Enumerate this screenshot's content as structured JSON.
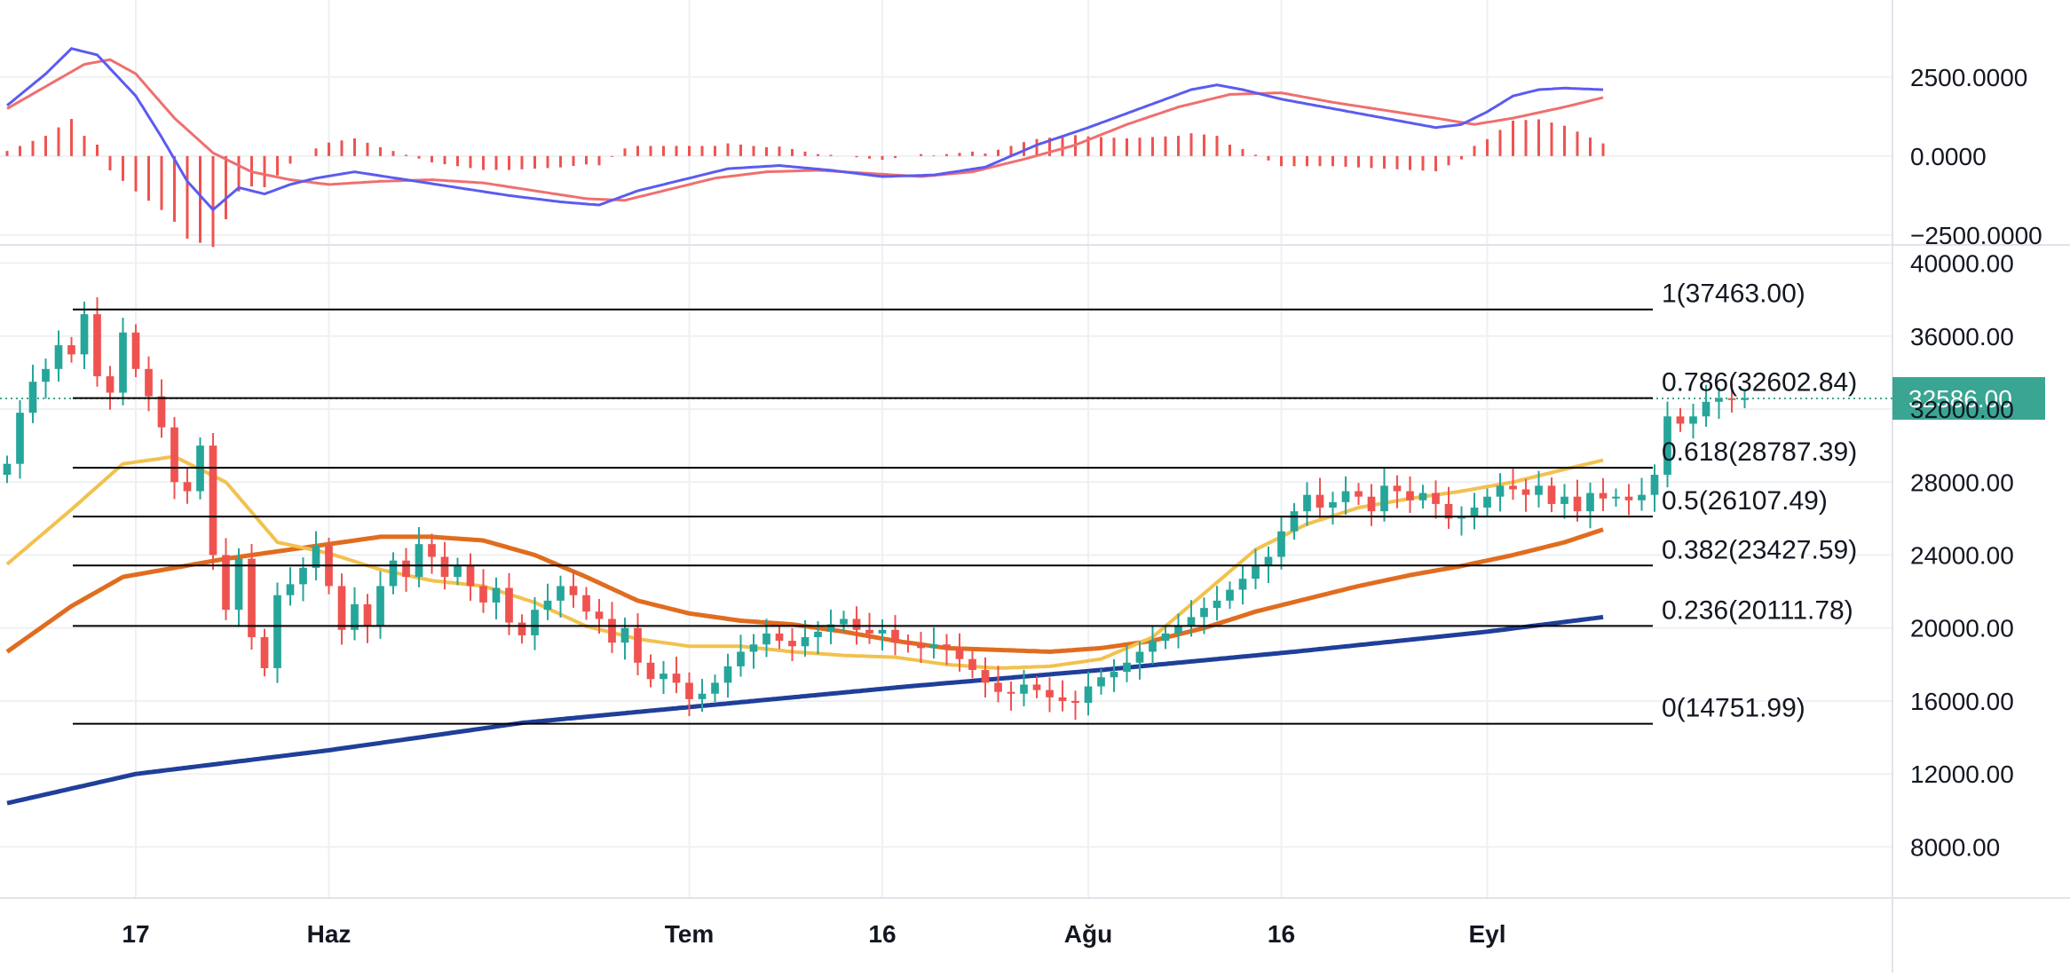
{
  "chart_data": {
    "type": "candlestick",
    "colors": {
      "up": "#26a69a",
      "down": "#ef5350",
      "ma_fast": "#f2c14e",
      "ma_mid": "#e06d1f",
      "ma_long": "#1f3f99",
      "macd": "#5b5bf0",
      "signal": "#ef6f6f",
      "fib_line": "#000000",
      "last_price_bg": "#3aa592",
      "grid": "#eef0f3"
    },
    "price_axis": {
      "ticks": [
        "40000.00",
        "36000.00",
        "32000.00",
        "28000.00",
        "24000.00",
        "20000.00",
        "16000.00",
        "12000.00",
        "8000.00"
      ],
      "values": [
        40000,
        36000,
        32000,
        28000,
        24000,
        20000,
        16000,
        12000,
        8000
      ],
      "range": [
        5200,
        41000
      ]
    },
    "macd_axis": {
      "ticks": [
        "2500.0000",
        "0.0000",
        "−2500.0000"
      ],
      "values": [
        2500,
        0,
        -2500
      ],
      "range": [
        -2700,
        4600
      ]
    },
    "time_axis": {
      "labels": [
        "17",
        "Haz",
        "Tem",
        "16",
        "Ağu",
        "16",
        "Eyl"
      ],
      "positions": [
        17,
        32,
        60,
        75,
        91,
        106,
        122
      ]
    },
    "fib_levels": [
      {
        "label": "1(37463.00)",
        "value": 37463
      },
      {
        "label": "0.786(32602.84)",
        "value": 32602.84
      },
      {
        "label": "0.618(28787.39)",
        "value": 28787.39
      },
      {
        "label": "0.5(26107.49)",
        "value": 26107.49
      },
      {
        "label": "0.382(23427.59)",
        "value": 23427.59
      },
      {
        "label": "0.236(20111.78)",
        "value": 20111.78
      },
      {
        "label": "0(14751.99)",
        "value": 14751.99
      }
    ],
    "last_price": {
      "label": "32586.00",
      "value": 32586
    },
    "day_range": [
      7,
      131
    ],
    "closes": [
      29000,
      31800,
      33500,
      34200,
      35500,
      35000,
      37200,
      33800,
      32900,
      36200,
      34200,
      32700,
      31000,
      28000,
      27500,
      30000,
      24000,
      21000,
      23800,
      19500,
      17800,
      21800,
      22400,
      23300,
      24500,
      22300,
      19900,
      21300,
      20100,
      22300,
      23700,
      22800,
      24600,
      23900,
      22800,
      23400,
      22300,
      21400,
      22200,
      20300,
      19600,
      21000,
      21500,
      22300,
      21800,
      20900,
      20500,
      19200,
      20000,
      18100,
      17200,
      17500,
      17000,
      16100,
      16400,
      17000,
      17900,
      18700,
      19100,
      19700,
      19300,
      19000,
      19500,
      19800,
      20200,
      20500,
      19900,
      19700,
      19900,
      19200,
      19100,
      18900,
      19100,
      18900,
      18300,
      17700,
      17000,
      16500,
      16400,
      16900,
      16600,
      16200,
      16000,
      15900,
      16800,
      17300,
      17600,
      18100,
      18700,
      19300,
      19700,
      20100,
      20600,
      21100,
      21500,
      22100,
      22700,
      23400,
      23900,
      25300,
      26400,
      27300,
      26600,
      26900,
      27500,
      27200,
      26400,
      27800,
      27500,
      27000,
      27400,
      26800,
      26000,
      26100,
      26600,
      27200,
      27800,
      27600,
      27300,
      27800,
      26800,
      27200,
      26400,
      27400,
      27100,
      27200,
      27000,
      27300,
      28400,
      31600,
      31200,
      31600,
      32400,
      32600,
      32500,
      32600
    ],
    "ma_fast_points": [
      [
        7,
        23500
      ],
      [
        12,
        26500
      ],
      [
        16,
        29000
      ],
      [
        20,
        29400
      ],
      [
        24,
        28000
      ],
      [
        28,
        24700
      ],
      [
        32,
        24100
      ],
      [
        36,
        23200
      ],
      [
        40,
        22600
      ],
      [
        44,
        22300
      ],
      [
        48,
        21400
      ],
      [
        52,
        20100
      ],
      [
        56,
        19400
      ],
      [
        60,
        19000
      ],
      [
        64,
        19000
      ],
      [
        68,
        18700
      ],
      [
        72,
        18500
      ],
      [
        76,
        18400
      ],
      [
        80,
        18000
      ],
      [
        84,
        17800
      ],
      [
        88,
        17900
      ],
      [
        92,
        18300
      ],
      [
        96,
        19500
      ],
      [
        100,
        21900
      ],
      [
        104,
        24300
      ],
      [
        108,
        25700
      ],
      [
        112,
        26600
      ],
      [
        116,
        27100
      ],
      [
        120,
        27500
      ],
      [
        124,
        28000
      ],
      [
        128,
        28700
      ],
      [
        131,
        29200
      ]
    ],
    "ma_mid_points": [
      [
        7,
        18700
      ],
      [
        12,
        21200
      ],
      [
        16,
        22800
      ],
      [
        20,
        23300
      ],
      [
        24,
        23800
      ],
      [
        28,
        24200
      ],
      [
        32,
        24600
      ],
      [
        36,
        25000
      ],
      [
        40,
        25000
      ],
      [
        44,
        24800
      ],
      [
        48,
        24000
      ],
      [
        52,
        22800
      ],
      [
        56,
        21500
      ],
      [
        60,
        20800
      ],
      [
        64,
        20400
      ],
      [
        68,
        20200
      ],
      [
        72,
        19800
      ],
      [
        76,
        19300
      ],
      [
        80,
        18900
      ],
      [
        84,
        18800
      ],
      [
        88,
        18700
      ],
      [
        92,
        18900
      ],
      [
        96,
        19300
      ],
      [
        100,
        20000
      ],
      [
        104,
        20900
      ],
      [
        108,
        21600
      ],
      [
        112,
        22300
      ],
      [
        116,
        22900
      ],
      [
        120,
        23400
      ],
      [
        124,
        24000
      ],
      [
        128,
        24700
      ],
      [
        131,
        25400
      ]
    ],
    "ma_long_points": [
      [
        7,
        10400
      ],
      [
        17,
        12000
      ],
      [
        32,
        13300
      ],
      [
        47,
        14800
      ],
      [
        62,
        15800
      ],
      [
        77,
        16800
      ],
      [
        92,
        17700
      ],
      [
        107,
        18700
      ],
      [
        122,
        19800
      ],
      [
        131,
        20600
      ]
    ],
    "macd_points": [
      [
        7,
        1600
      ],
      [
        10,
        2600
      ],
      [
        12,
        3400
      ],
      [
        14,
        3200
      ],
      [
        17,
        1900
      ],
      [
        19,
        600
      ],
      [
        21,
        -800
      ],
      [
        23,
        -1700
      ],
      [
        25,
        -1000
      ],
      [
        27,
        -1200
      ],
      [
        29,
        -900
      ],
      [
        31,
        -700
      ],
      [
        34,
        -500
      ],
      [
        38,
        -750
      ],
      [
        42,
        -1000
      ],
      [
        46,
        -1250
      ],
      [
        50,
        -1450
      ],
      [
        53,
        -1550
      ],
      [
        56,
        -1100
      ],
      [
        59,
        -800
      ],
      [
        63,
        -400
      ],
      [
        67,
        -300
      ],
      [
        71,
        -450
      ],
      [
        75,
        -650
      ],
      [
        79,
        -600
      ],
      [
        83,
        -350
      ],
      [
        87,
        350
      ],
      [
        91,
        900
      ],
      [
        95,
        1500
      ],
      [
        99,
        2100
      ],
      [
        101,
        2250
      ],
      [
        103,
        2100
      ],
      [
        106,
        1800
      ],
      [
        110,
        1500
      ],
      [
        114,
        1200
      ],
      [
        118,
        900
      ],
      [
        120,
        1000
      ],
      [
        122,
        1400
      ],
      [
        124,
        1900
      ],
      [
        126,
        2100
      ],
      [
        128,
        2150
      ],
      [
        131,
        2100
      ]
    ],
    "signal_points": [
      [
        7,
        1500
      ],
      [
        10,
        2200
      ],
      [
        13,
        2900
      ],
      [
        15,
        3050
      ],
      [
        17,
        2600
      ],
      [
        20,
        1200
      ],
      [
        23,
        100
      ],
      [
        26,
        -500
      ],
      [
        29,
        -750
      ],
      [
        32,
        -900
      ],
      [
        36,
        -800
      ],
      [
        40,
        -750
      ],
      [
        44,
        -850
      ],
      [
        48,
        -1100
      ],
      [
        52,
        -1350
      ],
      [
        55,
        -1400
      ],
      [
        58,
        -1100
      ],
      [
        62,
        -700
      ],
      [
        66,
        -500
      ],
      [
        70,
        -450
      ],
      [
        74,
        -550
      ],
      [
        78,
        -650
      ],
      [
        82,
        -500
      ],
      [
        86,
        -100
      ],
      [
        90,
        350
      ],
      [
        94,
        1000
      ],
      [
        98,
        1550
      ],
      [
        102,
        1950
      ],
      [
        106,
        2000
      ],
      [
        110,
        1700
      ],
      [
        114,
        1450
      ],
      [
        118,
        1200
      ],
      [
        121,
        1000
      ],
      [
        124,
        1200
      ],
      [
        128,
        1550
      ],
      [
        131,
        1850
      ]
    ]
  }
}
